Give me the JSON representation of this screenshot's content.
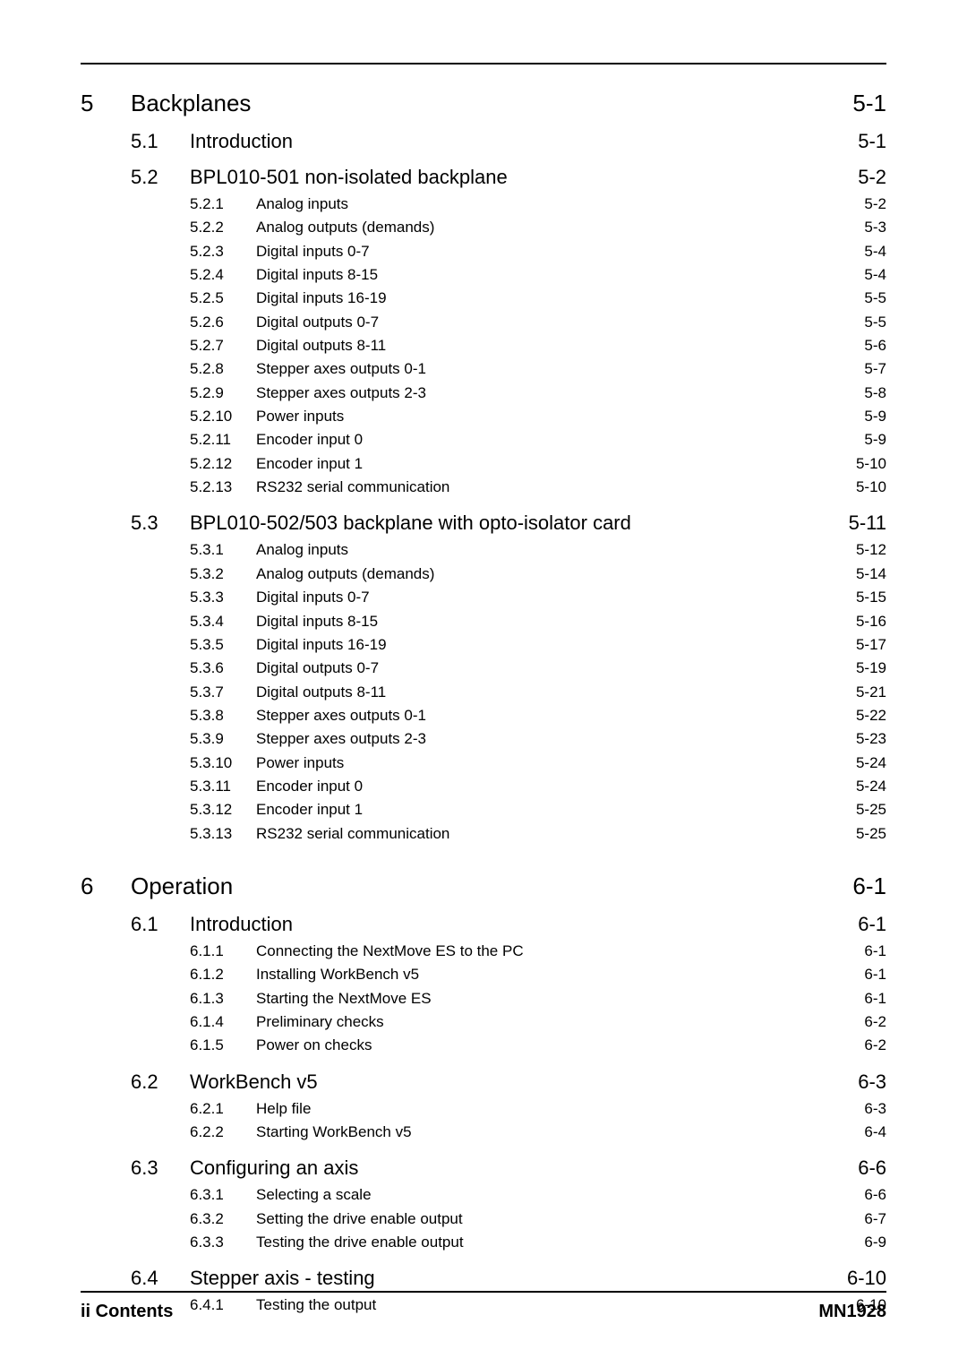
{
  "footer": {
    "left": "ii   Contents",
    "right": "MN1928"
  },
  "chapters": [
    {
      "num": "5",
      "title": "Backplanes",
      "page": "5-1",
      "sections": [
        {
          "num": "5.1",
          "title": "Introduction",
          "page": "5-1",
          "subs": []
        },
        {
          "num": "5.2",
          "title": "BPL010-501 non-isolated backplane",
          "page": "5-2",
          "subs": [
            {
              "num": "5.2.1",
              "title": "Analog inputs",
              "page": "5-2"
            },
            {
              "num": "5.2.2",
              "title": "Analog outputs (demands)",
              "page": "5-3"
            },
            {
              "num": "5.2.3",
              "title": "Digital inputs 0-7",
              "page": "5-4"
            },
            {
              "num": "5.2.4",
              "title": "Digital inputs 8-15",
              "page": "5-4"
            },
            {
              "num": "5.2.5",
              "title": "Digital inputs 16-19",
              "page": "5-5"
            },
            {
              "num": "5.2.6",
              "title": "Digital outputs 0-7",
              "page": "5-5"
            },
            {
              "num": "5.2.7",
              "title": "Digital outputs 8-11",
              "page": "5-6"
            },
            {
              "num": "5.2.8",
              "title": "Stepper axes outputs 0-1",
              "page": "5-7"
            },
            {
              "num": "5.2.9",
              "title": "Stepper axes outputs 2-3",
              "page": "5-8"
            },
            {
              "num": "5.2.10",
              "title": "Power inputs",
              "page": "5-9"
            },
            {
              "num": "5.2.11",
              "title": "Encoder input 0",
              "page": "5-9"
            },
            {
              "num": "5.2.12",
              "title": "Encoder input 1",
              "page": "5-10"
            },
            {
              "num": "5.2.13",
              "title": "RS232 serial communication",
              "page": "5-10"
            }
          ]
        },
        {
          "num": "5.3",
          "title": "BPL010-502/503 backplane with opto-isolator card",
          "page": "5-11",
          "subs": [
            {
              "num": "5.3.1",
              "title": "Analog inputs",
              "page": "5-12"
            },
            {
              "num": "5.3.2",
              "title": "Analog outputs (demands)",
              "page": "5-14"
            },
            {
              "num": "5.3.3",
              "title": "Digital inputs 0-7",
              "page": "5-15"
            },
            {
              "num": "5.3.4",
              "title": "Digital inputs 8-15",
              "page": "5-16"
            },
            {
              "num": "5.3.5",
              "title": "Digital inputs 16-19",
              "page": "5-17"
            },
            {
              "num": "5.3.6",
              "title": "Digital outputs 0-7",
              "page": "5-19"
            },
            {
              "num": "5.3.7",
              "title": "Digital outputs 8-11",
              "page": "5-21"
            },
            {
              "num": "5.3.8",
              "title": "Stepper axes outputs 0-1",
              "page": "5-22"
            },
            {
              "num": "5.3.9",
              "title": "Stepper axes outputs 2-3",
              "page": "5-23"
            },
            {
              "num": "5.3.10",
              "title": "Power inputs",
              "page": "5-24"
            },
            {
              "num": "5.3.11",
              "title": "Encoder input 0",
              "page": "5-24"
            },
            {
              "num": "5.3.12",
              "title": "Encoder input 1",
              "page": "5-25"
            },
            {
              "num": "5.3.13",
              "title": "RS232 serial communication",
              "page": "5-25"
            }
          ]
        }
      ]
    },
    {
      "num": "6",
      "title": "Operation",
      "page": "6-1",
      "sections": [
        {
          "num": "6.1",
          "title": "Introduction",
          "page": "6-1",
          "subs": [
            {
              "num": "6.1.1",
              "title": "Connecting the NextMove ES to the PC",
              "page": "6-1"
            },
            {
              "num": "6.1.2",
              "title": "Installing WorkBench v5",
              "page": "6-1"
            },
            {
              "num": "6.1.3",
              "title": "Starting the NextMove ES",
              "page": "6-1"
            },
            {
              "num": "6.1.4",
              "title": "Preliminary checks",
              "page": "6-2"
            },
            {
              "num": "6.1.5",
              "title": "Power on checks",
              "page": "6-2"
            }
          ]
        },
        {
          "num": "6.2",
          "title": "WorkBench v5",
          "page": "6-3",
          "subs": [
            {
              "num": "6.2.1",
              "title": "Help file",
              "page": "6-3"
            },
            {
              "num": "6.2.2",
              "title": "Starting WorkBench v5",
              "page": "6-4"
            }
          ]
        },
        {
          "num": "6.3",
          "title": "Configuring an axis",
          "page": "6-6",
          "subs": [
            {
              "num": "6.3.1",
              "title": "Selecting a scale",
              "page": "6-6"
            },
            {
              "num": "6.3.2",
              "title": "Setting the drive enable output",
              "page": "6-7"
            },
            {
              "num": "6.3.3",
              "title": "Testing the drive enable output",
              "page": "6-9"
            }
          ]
        },
        {
          "num": "6.4",
          "title": "Stepper axis - testing",
          "page": "6-10",
          "subs": [
            {
              "num": "6.4.1",
              "title": "Testing the output",
              "page": "6-10"
            }
          ]
        }
      ]
    }
  ]
}
